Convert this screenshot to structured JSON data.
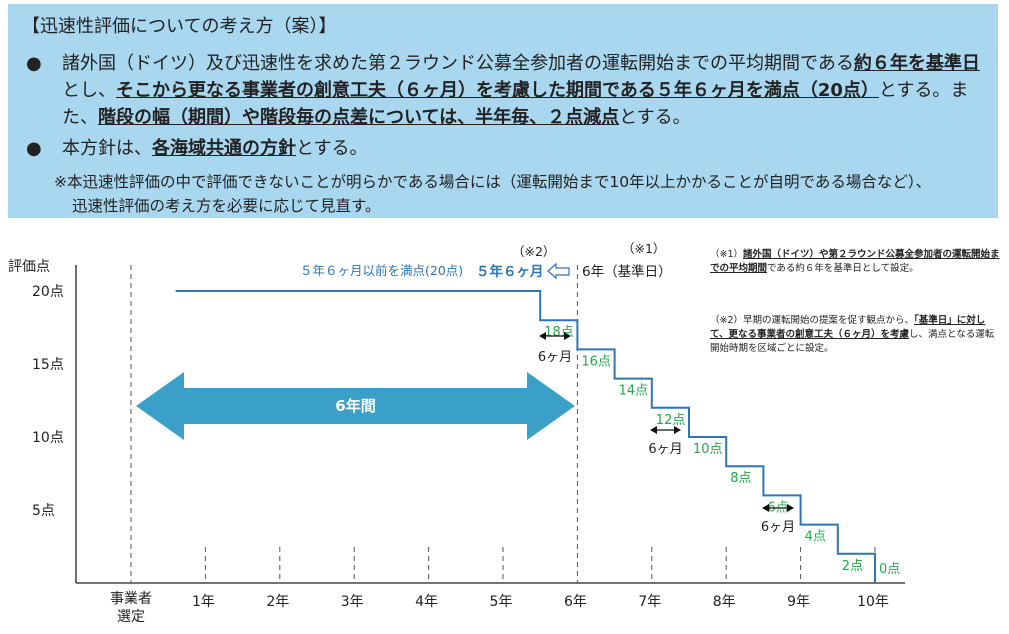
{
  "panel": {
    "heading": "【迅速性評価についての考え方（案）】",
    "bullet_glyph": "●",
    "bullet1": [
      {
        "t": "諸外国（ドイツ）及び迅速性を求めた第２ラウンド公募全参加者の運転開始までの平均期間である",
        "em": false
      },
      {
        "t": "約６年を基準日",
        "em": true
      },
      {
        "t": "とし、",
        "em": false
      },
      {
        "t": "そこから更なる事業者の創意工夫（６ヶ月）を考慮した期間である５年６ヶ月を満点（20点）",
        "em": true
      },
      {
        "t": "とする。また、",
        "em": false
      },
      {
        "t": "階段の幅（期間）や階段毎の点差については、半年毎、２点減点",
        "em": true
      },
      {
        "t": "とする。",
        "em": false
      }
    ],
    "bullet2": [
      {
        "t": "本方針は、",
        "em": false
      },
      {
        "t": "各海域共通の方針",
        "em": true
      },
      {
        "t": "とする。",
        "em": false
      }
    ],
    "note_line1": "※本迅速性評価の中で評価できないことが明らかである場合には（運転開始まで10年以上かかることが自明である場合など）、",
    "note_line2": "迅速性評価の考え方を必要に応じて見直す。"
  },
  "chart_data": {
    "type": "line",
    "ylabel": "評価点",
    "y_ticks": [
      "20点",
      "15点",
      "10点",
      "5点"
    ],
    "x_ticks": [
      "1年",
      "2年",
      "3年",
      "4年",
      "5年",
      "6年",
      "7年",
      "8年",
      "9年",
      "10年"
    ],
    "x_first_label": [
      "事業者",
      "選定"
    ],
    "ylim": [
      0,
      20
    ],
    "series": [
      {
        "x": [
          0.6,
          5.5,
          5.5,
          6.0,
          6.0,
          6.5,
          6.5,
          7.0,
          7.0,
          7.5,
          7.5,
          8.0,
          8.0,
          8.5,
          8.5,
          9.0,
          9.0,
          9.5,
          9.5,
          10.0,
          10.0
        ],
        "y": [
          20,
          20,
          18,
          18,
          16,
          16,
          14,
          14,
          12,
          12,
          10,
          10,
          8,
          8,
          6,
          6,
          4,
          4,
          2,
          2,
          0
        ]
      }
    ],
    "step_labels": [
      "18点",
      "16点",
      "14点",
      "12点",
      "10点",
      "8点",
      "6点",
      "4点",
      "2点",
      "0点"
    ],
    "band_label": "6年間",
    "full_score_text": "５年６ヶ月以前を満点(20点)",
    "full_score_date": "５年６ヶ月",
    "base_date": "6年（基準日）",
    "mark_1": "（※1）",
    "mark_2": "（※2）",
    "six_months": "6ヶ月",
    "colors": {
      "line": "#2e75b6",
      "steps": "#22a84a",
      "band": "#3aa0c8",
      "panel": "#a9d7ef"
    }
  },
  "side_notes": {
    "n1_mark": "（※1）",
    "n1_em": "諸外国（ドイツ）や第２ラウンド公募全参加者の運転開始までの平均期間",
    "n1_rest": "である約６年を基準日として設定。",
    "n2_mark": "（※2）",
    "n2_pre": "早期の運転開始の提案を促す観点から、",
    "n2_em": "「基準日」に対して、更なる事業者の創意工夫（６ヶ月）を考慮",
    "n2_rest": "し、満点となる運転開始時期を区域ごとに設定。"
  }
}
